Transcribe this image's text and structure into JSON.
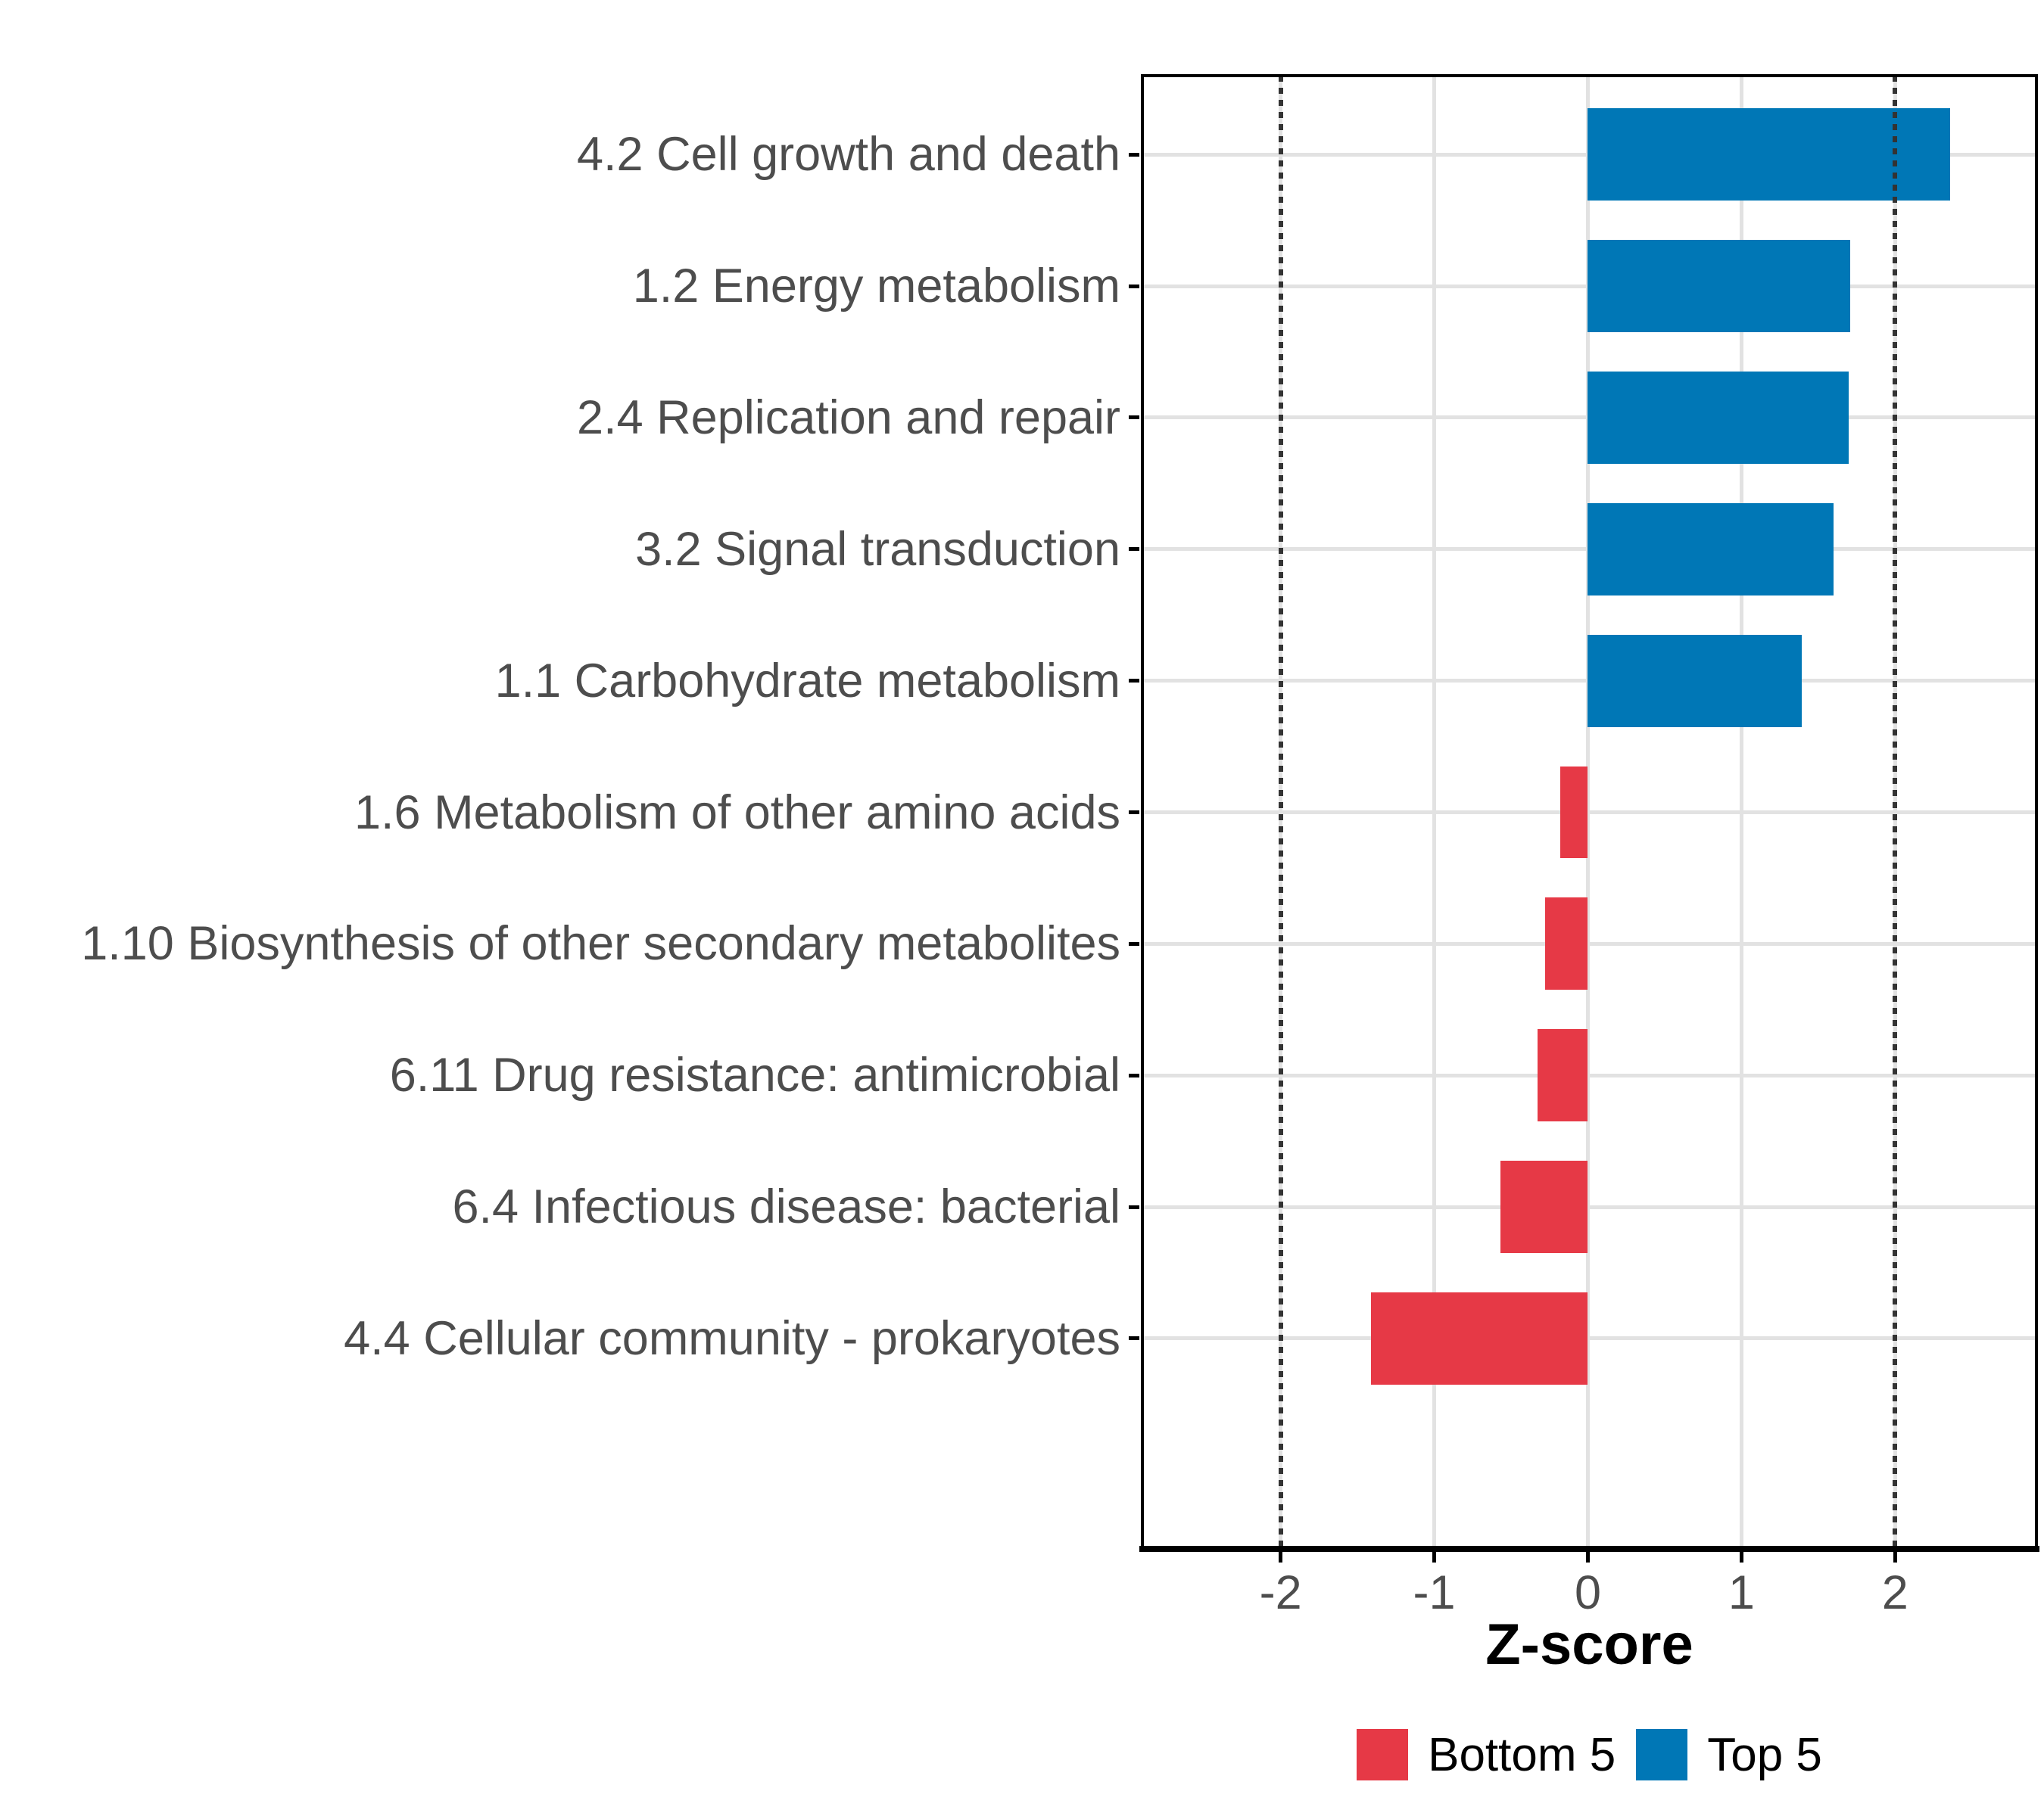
{
  "chart_data": {
    "type": "bar",
    "orientation": "horizontal",
    "title": "",
    "xlabel": "Z-score",
    "ylabel": "",
    "categories": [
      "4.2 Cell growth and death",
      "1.2 Energy metabolism",
      "2.4 Replication and repair",
      "3.2 Signal transduction",
      "1.1 Carbohydrate metabolism",
      "1.6 Metabolism of other amino acids",
      "1.10 Biosynthesis of other secondary metabolites",
      "6.11 Drug resistance: antimicrobial",
      "6.4 Infectious disease: bacterial",
      "4.4 Cellular community - prokaryotes"
    ],
    "values": [
      2.36,
      1.71,
      1.7,
      1.6,
      1.39,
      -0.18,
      -0.28,
      -0.33,
      -0.57,
      -1.41
    ],
    "groups": [
      "Top 5",
      "Top 5",
      "Top 5",
      "Top 5",
      "Top 5",
      "Bottom 5",
      "Bottom 5",
      "Bottom 5",
      "Bottom 5",
      "Bottom 5"
    ],
    "series": [
      {
        "name": "Bottom 5",
        "color": "#E63946"
      },
      {
        "name": "Top 5",
        "color": "#0077B6"
      }
    ],
    "xlim": [
      -2.9,
      2.92
    ],
    "xticks": [
      -2,
      -1,
      0,
      1,
      2
    ],
    "xtick_labels": [
      "-2",
      "-1",
      "0",
      "1",
      "2"
    ],
    "reference_lines": {
      "positions": [
        -2,
        2
      ],
      "style": "dotted",
      "color": "#333333"
    },
    "grid": {
      "show": true,
      "color": "#E2E2E2"
    },
    "legend": {
      "position": "bottom",
      "items": [
        {
          "label": "Bottom 5",
          "color": "#E63946"
        },
        {
          "label": "Top 5",
          "color": "#0077B6"
        }
      ]
    },
    "colors": {
      "top5": "#0077B6",
      "bottom5": "#E63946",
      "axis_text": "#4D4D4D",
      "axis_line": "#000000",
      "gridline": "#E2E2E2",
      "reference_line": "#333333",
      "background": "#FFFFFF"
    }
  }
}
